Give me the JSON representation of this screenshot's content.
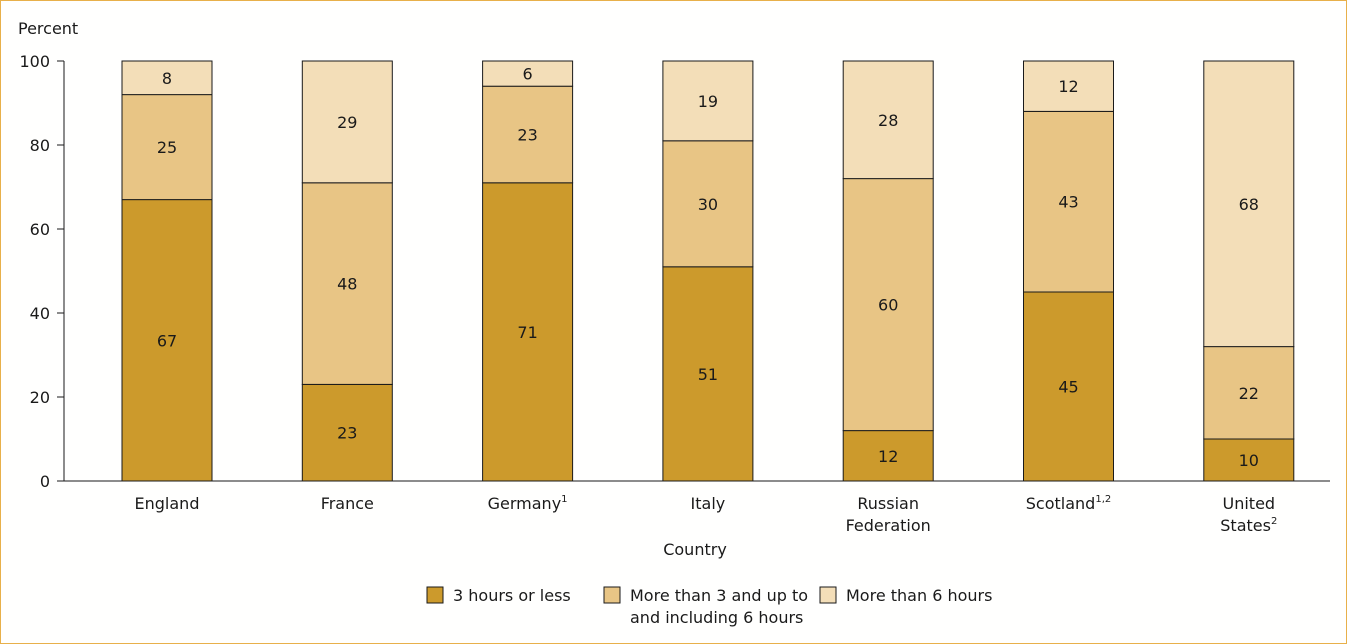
{
  "chart_data": {
    "type": "bar",
    "stacked": true,
    "ylabel": "Percent",
    "xlabel": "Country",
    "ylim": [
      0,
      100
    ],
    "yticks": [
      "0",
      "20",
      "40",
      "60",
      "80",
      "100"
    ],
    "categories": [
      {
        "lines": [
          "England"
        ],
        "sup": ""
      },
      {
        "lines": [
          "France"
        ],
        "sup": ""
      },
      {
        "lines": [
          "Germany"
        ],
        "sup": "1"
      },
      {
        "lines": [
          "Italy"
        ],
        "sup": ""
      },
      {
        "lines": [
          "Russian",
          "Federation"
        ],
        "sup": ""
      },
      {
        "lines": [
          "Scotland"
        ],
        "sup": "1,2"
      },
      {
        "lines": [
          "United",
          "States"
        ],
        "sup": "2"
      }
    ],
    "series": [
      {
        "name": "3 hours or less",
        "legend_lines": [
          "3 hours or less"
        ],
        "color": "#cc9a2c",
        "values": [
          67,
          23,
          71,
          51,
          12,
          45,
          10
        ]
      },
      {
        "name": "More than 3 and up to and including 6 hours",
        "legend_lines": [
          "More than 3 and up to",
          "and including 6 hours"
        ],
        "color": "#e8c585",
        "values": [
          25,
          48,
          23,
          30,
          60,
          43,
          22
        ]
      },
      {
        "name": "More than 6 hours",
        "legend_lines": [
          "More than 6 hours"
        ],
        "color": "#f3deb8",
        "values": [
          8,
          29,
          6,
          19,
          28,
          12,
          68
        ]
      }
    ],
    "grid": false,
    "legend_position": "bottom-center"
  }
}
